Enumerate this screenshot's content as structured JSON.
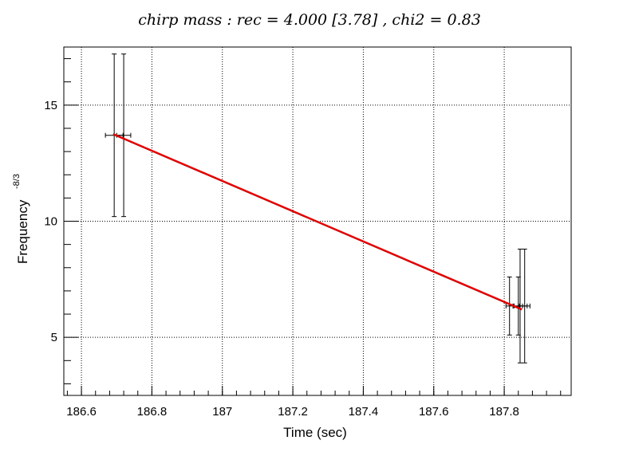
{
  "chart_data": {
    "type": "scatter",
    "title": "chirp mass : rec = 4.000 [3.78] , chi2 = 0.83",
    "xlabel": "Time (sec)",
    "ylabel": "Frequency",
    "ylabel_exponent": "-8/3",
    "xlim": [
      186.55,
      187.99
    ],
    "ylim": [
      2.5,
      17.5
    ],
    "x_ticks": [
      186.6,
      186.8,
      187,
      187.2,
      187.4,
      187.6,
      187.8
    ],
    "x_tick_labels": [
      "186.6",
      "186.8",
      "187",
      "187.2",
      "187.4",
      "187.6",
      "187.8"
    ],
    "y_ticks": [
      5,
      10,
      15
    ],
    "y_tick_labels": [
      "5",
      "10",
      "15"
    ],
    "grid": true,
    "points": [
      {
        "x": 186.693,
        "y": 13.7,
        "y_low": 10.2,
        "y_high": 17.2,
        "x_err": 0.025
      },
      {
        "x": 186.72,
        "y": 13.7,
        "y_low": 10.2,
        "y_high": 17.2,
        "x_err": 0.02
      },
      {
        "x": 187.815,
        "y": 6.35,
        "y_low": 5.1,
        "y_high": 7.6,
        "x_err": 0.01
      },
      {
        "x": 187.84,
        "y": 6.35,
        "y_low": 5.1,
        "y_high": 7.6,
        "x_err": 0.012
      },
      {
        "x": 187.845,
        "y": 6.35,
        "y_low": 3.9,
        "y_high": 8.8,
        "x_err": 0.02
      },
      {
        "x": 187.858,
        "y": 6.35,
        "y_low": 3.9,
        "y_high": 8.8,
        "x_err": 0.015
      }
    ],
    "fit_line": {
      "x": [
        186.69,
        187.85
      ],
      "y": [
        13.75,
        6.2
      ],
      "color": "#e00000"
    }
  }
}
